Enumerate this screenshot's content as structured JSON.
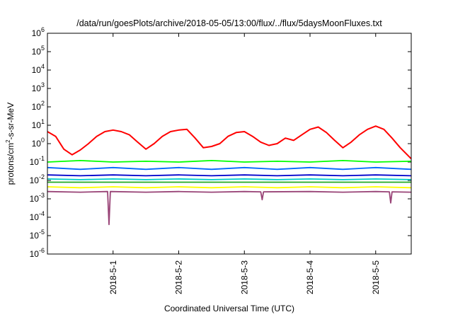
{
  "chart_data": {
    "type": "line",
    "title": "/data/run/goesPlots/archive/2018-05-05/13:00/flux/../flux/5daysMoonFluxes.txt",
    "xlabel": "Coordinated Universal Time (UTC)",
    "ylabel_parts": {
      "prefix": "protons/cm",
      "sup": "2",
      "suffix": "-s-sr-MeV"
    },
    "y_scale": "log",
    "ylim": [
      1e-06,
      1000000.0
    ],
    "y_ticks": [
      {
        "base": "10",
        "exp": "-6",
        "value": 1e-06
      },
      {
        "base": "10",
        "exp": "-5",
        "value": 1e-05
      },
      {
        "base": "10",
        "exp": "-4",
        "value": 0.0001
      },
      {
        "base": "10",
        "exp": "-3",
        "value": 0.001
      },
      {
        "base": "10",
        "exp": "-2",
        "value": 0.01
      },
      {
        "base": "10",
        "exp": "-1",
        "value": 0.1
      },
      {
        "base": "10",
        "exp": "0",
        "value": 1
      },
      {
        "base": "10",
        "exp": "1",
        "value": 10
      },
      {
        "base": "10",
        "exp": "2",
        "value": 100
      },
      {
        "base": "10",
        "exp": "3",
        "value": 1000
      },
      {
        "base": "10",
        "exp": "4",
        "value": 10000
      },
      {
        "base": "10",
        "exp": "5",
        "value": 100000
      },
      {
        "base": "10",
        "exp": "6",
        "value": 1000000
      }
    ],
    "xlim": [
      "2018-04-30 00:00",
      "2018-05-05 13:00"
    ],
    "x_ticks": [
      {
        "label": "2018-5-1",
        "value": "2018-05-01 00:00"
      },
      {
        "label": "2018-5-2",
        "value": "2018-05-02 00:00"
      },
      {
        "label": "2018-5-3",
        "value": "2018-05-03 00:00"
      },
      {
        "label": "2018-5-4",
        "value": "2018-05-04 00:00"
      },
      {
        "label": "2018-5-5",
        "value": "2018-05-05 00:00"
      }
    ],
    "grid": false,
    "legend": "none",
    "series": [
      {
        "color": "#ff0000",
        "x": [
          "2018-04-30 00:00",
          "2018-04-30 03:00",
          "2018-04-30 06:00",
          "2018-04-30 09:00",
          "2018-04-30 12:00",
          "2018-04-30 15:00",
          "2018-04-30 18:00",
          "2018-04-30 21:00",
          "2018-05-01 00:00",
          "2018-05-01 03:00",
          "2018-05-01 06:00",
          "2018-05-01 09:00",
          "2018-05-01 12:00",
          "2018-05-01 15:00",
          "2018-05-01 18:00",
          "2018-05-01 21:00",
          "2018-05-02 00:00",
          "2018-05-02 03:00",
          "2018-05-02 06:00",
          "2018-05-02 09:00",
          "2018-05-02 12:00",
          "2018-05-02 15:00",
          "2018-05-02 18:00",
          "2018-05-02 21:00",
          "2018-05-03 00:00",
          "2018-05-03 03:00",
          "2018-05-03 06:00",
          "2018-05-03 09:00",
          "2018-05-03 12:00",
          "2018-05-03 15:00",
          "2018-05-03 18:00",
          "2018-05-03 21:00",
          "2018-05-04 00:00",
          "2018-05-04 03:00",
          "2018-05-04 06:00",
          "2018-05-04 09:00",
          "2018-05-04 12:00",
          "2018-05-04 15:00",
          "2018-05-04 18:00",
          "2018-05-04 21:00",
          "2018-05-05 00:00",
          "2018-05-05 03:00",
          "2018-05-05 06:00",
          "2018-05-05 09:00",
          "2018-05-05 13:00"
        ],
        "values": [
          4.5,
          2.5,
          0.5,
          0.25,
          0.45,
          1.0,
          2.5,
          4.5,
          5.5,
          4.5,
          3.0,
          1.2,
          0.5,
          1.0,
          2.5,
          4.5,
          5.5,
          6.0,
          2.0,
          0.6,
          0.7,
          1.0,
          2.5,
          4.0,
          4.5,
          2.5,
          1.2,
          0.8,
          1.0,
          2.0,
          1.5,
          3.0,
          6.0,
          8.0,
          4.0,
          1.5,
          0.6,
          1.2,
          3.0,
          6.0,
          9.0,
          6.0,
          2.0,
          0.6,
          0.15
        ]
      },
      {
        "color": "#00ff00",
        "x": [
          "2018-04-30 00:00",
          "2018-04-30 12:00",
          "2018-05-01 00:00",
          "2018-05-01 12:00",
          "2018-05-02 00:00",
          "2018-05-02 12:00",
          "2018-05-03 00:00",
          "2018-05-03 12:00",
          "2018-05-04 00:00",
          "2018-05-04 12:00",
          "2018-05-05 00:00",
          "2018-05-05 13:00"
        ],
        "values": [
          0.1,
          0.12,
          0.1,
          0.11,
          0.1,
          0.12,
          0.1,
          0.11,
          0.1,
          0.12,
          0.1,
          0.11
        ]
      },
      {
        "color": "#0066ff",
        "x": [
          "2018-04-30 00:00",
          "2018-04-30 12:00",
          "2018-05-01 00:00",
          "2018-05-01 12:00",
          "2018-05-02 00:00",
          "2018-05-02 12:00",
          "2018-05-03 00:00",
          "2018-05-03 12:00",
          "2018-05-04 00:00",
          "2018-05-04 12:00",
          "2018-05-05 00:00",
          "2018-05-05 13:00"
        ],
        "values": [
          0.05,
          0.04,
          0.05,
          0.04,
          0.05,
          0.04,
          0.05,
          0.04,
          0.05,
          0.04,
          0.05,
          0.04
        ]
      },
      {
        "color": "#0000cc",
        "x": [
          "2018-04-30 00:00",
          "2018-04-30 12:00",
          "2018-05-01 00:00",
          "2018-05-01 12:00",
          "2018-05-02 00:00",
          "2018-05-02 12:00",
          "2018-05-03 00:00",
          "2018-05-03 12:00",
          "2018-05-04 00:00",
          "2018-05-04 12:00",
          "2018-05-05 00:00",
          "2018-05-05 13:00"
        ],
        "values": [
          0.02,
          0.018,
          0.02,
          0.018,
          0.02,
          0.018,
          0.02,
          0.018,
          0.02,
          0.018,
          0.02,
          0.018
        ]
      },
      {
        "color": "#00cccc",
        "x": [
          "2018-04-30 00:00",
          "2018-04-30 12:00",
          "2018-05-01 00:00",
          "2018-05-01 12:00",
          "2018-05-02 00:00",
          "2018-05-02 12:00",
          "2018-05-03 00:00",
          "2018-05-03 12:00",
          "2018-05-04 00:00",
          "2018-05-04 12:00",
          "2018-05-05 00:00",
          "2018-05-05 13:00"
        ],
        "values": [
          0.012,
          0.011,
          0.012,
          0.011,
          0.012,
          0.011,
          0.012,
          0.011,
          0.012,
          0.011,
          0.012,
          0.011
        ]
      },
      {
        "color": "#22aa22",
        "x": [
          "2018-04-30 00:00",
          "2018-04-30 12:00",
          "2018-05-01 00:00",
          "2018-05-01 12:00",
          "2018-05-02 00:00",
          "2018-05-02 12:00",
          "2018-05-03 00:00",
          "2018-05-03 12:00",
          "2018-05-04 00:00",
          "2018-05-04 12:00",
          "2018-05-05 00:00",
          "2018-05-05 13:00"
        ],
        "values": [
          0.008,
          0.008,
          0.008,
          0.008,
          0.008,
          0.008,
          0.008,
          0.008,
          0.008,
          0.008,
          0.008,
          0.008
        ]
      },
      {
        "color": "#ffff00",
        "x": [
          "2018-04-30 00:00",
          "2018-04-30 12:00",
          "2018-05-01 00:00",
          "2018-05-01 12:00",
          "2018-05-02 00:00",
          "2018-05-02 12:00",
          "2018-05-03 00:00",
          "2018-05-03 12:00",
          "2018-05-04 00:00",
          "2018-05-04 12:00",
          "2018-05-05 00:00",
          "2018-05-05 13:00"
        ],
        "values": [
          0.0045,
          0.004,
          0.0045,
          0.004,
          0.0045,
          0.004,
          0.0045,
          0.004,
          0.0045,
          0.004,
          0.0045,
          0.004
        ]
      },
      {
        "color": "#994477",
        "x": [
          "2018-04-30 00:00",
          "2018-04-30 12:00",
          "2018-04-30 22:00",
          "2018-04-30 22:30",
          "2018-04-30 23:00",
          "2018-05-01 12:00",
          "2018-05-02 00:00",
          "2018-05-02 12:00",
          "2018-05-03 00:00",
          "2018-05-03 06:00",
          "2018-05-03 06:30",
          "2018-05-03 07:00",
          "2018-05-04 00:00",
          "2018-05-04 12:00",
          "2018-05-05 00:00",
          "2018-05-05 05:00",
          "2018-05-05 05:30",
          "2018-05-05 06:00",
          "2018-05-05 13:00"
        ],
        "values": [
          0.0025,
          0.0023,
          0.0025,
          4e-05,
          0.0025,
          0.0023,
          0.0025,
          0.0023,
          0.0025,
          0.0024,
          0.0009,
          0.0024,
          0.0025,
          0.0023,
          0.0025,
          0.0024,
          0.0006,
          0.0024,
          0.0023
        ]
      }
    ]
  }
}
